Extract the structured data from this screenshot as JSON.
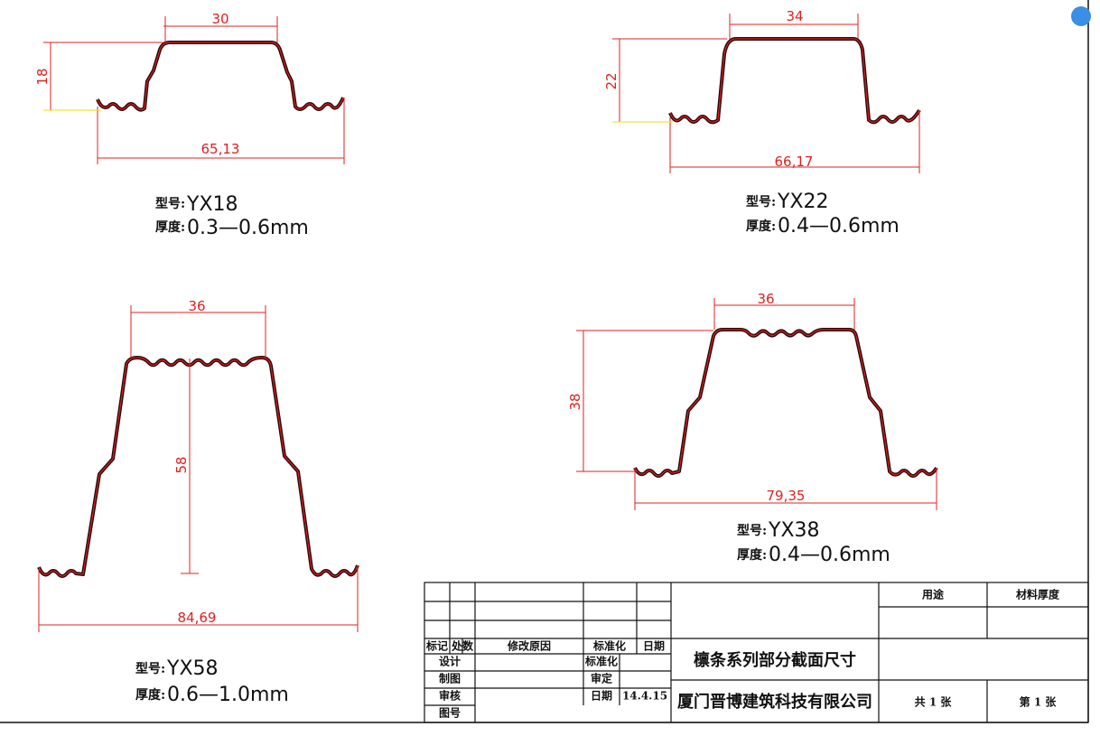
{
  "profiles": [
    {
      "model_label": "型号:",
      "model": "YX18",
      "thickness_label": "厚度:",
      "thickness": "0.3—0.6mm",
      "dims": {
        "top": "30",
        "height": "18",
        "width": "65,13"
      }
    },
    {
      "model_label": "型号:",
      "model": "YX22",
      "thickness_label": "厚度:",
      "thickness": "0.4—0.6mm",
      "dims": {
        "top": "34",
        "height": "22",
        "width": "66,17"
      }
    },
    {
      "model_label": "型号:",
      "model": "YX58",
      "thickness_label": "厚度:",
      "thickness": "0.6—1.0mm",
      "dims": {
        "top": "36",
        "height": "58",
        "width": "84,69"
      }
    },
    {
      "model_label": "型号:",
      "model": "YX38",
      "thickness_label": "厚度:",
      "thickness": "0.4—0.6mm",
      "dims": {
        "top": "36",
        "height": "38",
        "width": "79,35"
      }
    }
  ],
  "title_block": {
    "revision_headers": [
      "标记",
      "处数",
      "修改原因",
      "标准化",
      "日期"
    ],
    "design": "设计",
    "standardization": "标准化",
    "drafting": "制图",
    "approval": "审定",
    "review": "审核",
    "date": "日期",
    "date_value": "14.4.15",
    "drawing_no": "图号",
    "usage": "用途",
    "material_thickness": "材料厚度",
    "drawing_title": "檩条系列部分截面尺寸",
    "company": "厦门晋博建筑科技有限公司",
    "sheets_total": "共 1 张",
    "sheet_no": "第 1 张"
  }
}
